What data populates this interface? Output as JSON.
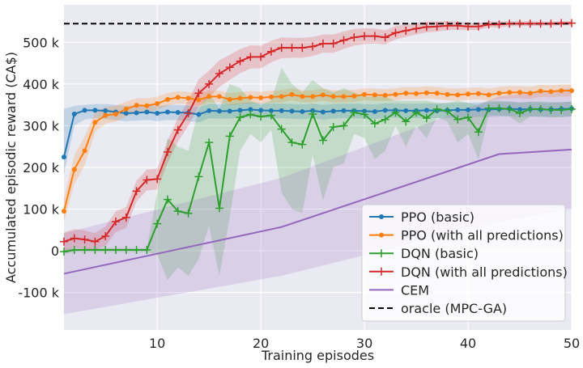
{
  "chart_data": {
    "type": "line",
    "title": "",
    "xlabel": "Training episodes",
    "ylabel": "Accumulated episodic reward (CA$)",
    "xlim": [
      1,
      50
    ],
    "ylim": [
      -190000,
      590000
    ],
    "xticks": [
      10,
      20,
      30,
      40,
      50
    ],
    "xtick_labels": [
      "10",
      "20",
      "30",
      "40",
      "50"
    ],
    "yticks": [
      -100000,
      0,
      100000,
      200000,
      300000,
      400000,
      500000
    ],
    "ytick_labels": [
      "-100 k",
      "0",
      "100 k",
      "200 k",
      "300 k",
      "400 k",
      "500 k"
    ],
    "grid": true,
    "legend_position": "lower-right",
    "series": [
      {
        "name": "PPO (basic)",
        "color": "#1f77b4",
        "marker": "dot",
        "x": [
          1,
          2,
          3,
          4,
          5,
          6,
          7,
          8,
          9,
          10,
          11,
          12,
          13,
          14,
          15,
          16,
          17,
          18,
          19,
          20,
          21,
          22,
          23,
          24,
          25,
          26,
          27,
          28,
          29,
          30,
          31,
          32,
          33,
          34,
          35,
          36,
          37,
          38,
          39,
          40,
          41,
          42,
          43,
          44,
          45,
          46,
          47,
          48,
          49,
          50
        ],
        "y": [
          225000,
          328000,
          337000,
          337000,
          336000,
          333000,
          330000,
          331000,
          333000,
          330000,
          333000,
          332000,
          331000,
          327000,
          336000,
          335000,
          335000,
          337000,
          339000,
          337000,
          336000,
          336000,
          335000,
          334000,
          336000,
          333000,
          335000,
          336000,
          336000,
          335000,
          334000,
          337000,
          337000,
          336000,
          336000,
          337000,
          336000,
          337000,
          338000,
          338000,
          339000,
          339000,
          340000,
          341000,
          339000,
          340000,
          339000,
          339000,
          340000,
          341000
        ],
        "lower": [
          185000,
          300000,
          315000,
          318000,
          316000,
          313000,
          311000,
          312000,
          314000,
          311000,
          314000,
          313000,
          312000,
          308000,
          318000,
          317000,
          317000,
          319000,
          321000,
          319000,
          318000,
          318000,
          317000,
          316000,
          318000,
          315000,
          317000,
          318000,
          318000,
          317000,
          316000,
          319000,
          319000,
          318000,
          318000,
          319000,
          318000,
          319000,
          320000,
          320000,
          321000,
          321000,
          322000,
          323000,
          321000,
          322000,
          321000,
          321000,
          322000,
          323000
        ],
        "upper": [
          340000,
          348000,
          350000,
          352000,
          352000,
          350000,
          348000,
          348000,
          350000,
          347000,
          350000,
          350000,
          349000,
          345000,
          352000,
          352000,
          352000,
          354000,
          356000,
          354000,
          353000,
          353000,
          352000,
          351000,
          353000,
          350000,
          352000,
          353000,
          353000,
          352000,
          351000,
          354000,
          354000,
          353000,
          353000,
          354000,
          353000,
          354000,
          355000,
          355000,
          356000,
          356000,
          357000,
          358000,
          356000,
          357000,
          356000,
          356000,
          357000,
          358000
        ]
      },
      {
        "name": "PPO (with all predictions)",
        "color": "#ff7f0e",
        "marker": "dot",
        "x": [
          1,
          2,
          3,
          4,
          5,
          6,
          7,
          8,
          9,
          10,
          11,
          12,
          13,
          14,
          15,
          16,
          17,
          18,
          19,
          20,
          21,
          22,
          23,
          24,
          25,
          26,
          27,
          28,
          29,
          30,
          31,
          32,
          33,
          34,
          35,
          36,
          37,
          38,
          39,
          40,
          41,
          42,
          43,
          44,
          45,
          46,
          47,
          48,
          49,
          50
        ],
        "y": [
          95000,
          195000,
          240000,
          308000,
          325000,
          328000,
          340000,
          349000,
          348000,
          353000,
          363000,
          368000,
          366000,
          362000,
          370000,
          370000,
          363000,
          366000,
          368000,
          367000,
          369000,
          370000,
          375000,
          370000,
          370000,
          374000,
          370000,
          370000,
          371000,
          375000,
          374000,
          373000,
          375000,
          378000,
          377000,
          379000,
          378000,
          375000,
          374000,
          376000,
          377000,
          374000,
          378000,
          380000,
          380000,
          378000,
          383000,
          382000,
          384000,
          384000
        ],
        "lower": [
          70000,
          160000,
          205000,
          285000,
          305000,
          310000,
          322000,
          332000,
          332000,
          338000,
          348000,
          353000,
          351000,
          347000,
          356000,
          356000,
          349000,
          352000,
          354000,
          353000,
          355000,
          356000,
          361000,
          356000,
          356000,
          360000,
          356000,
          356000,
          357000,
          361000,
          360000,
          359000,
          361000,
          364000,
          363000,
          365000,
          364000,
          361000,
          360000,
          362000,
          363000,
          360000,
          364000,
          366000,
          366000,
          364000,
          369000,
          368000,
          370000,
          370000
        ],
        "upper": [
          125000,
          230000,
          275000,
          330000,
          345000,
          348000,
          358000,
          366000,
          366000,
          370000,
          378000,
          383000,
          381000,
          377000,
          384000,
          384000,
          378000,
          381000,
          383000,
          382000,
          384000,
          385000,
          390000,
          385000,
          385000,
          389000,
          385000,
          385000,
          386000,
          390000,
          389000,
          388000,
          390000,
          393000,
          392000,
          394000,
          393000,
          390000,
          389000,
          391000,
          392000,
          389000,
          393000,
          395000,
          395000,
          393000,
          398000,
          397000,
          399000,
          399000
        ]
      },
      {
        "name": "DQN (basic)",
        "color": "#2ca02c",
        "marker": "plus",
        "x": [
          1,
          2,
          3,
          4,
          5,
          6,
          7,
          8,
          9,
          10,
          11,
          12,
          13,
          14,
          15,
          16,
          17,
          18,
          19,
          20,
          21,
          22,
          23,
          24,
          25,
          26,
          27,
          28,
          29,
          30,
          31,
          32,
          33,
          34,
          35,
          36,
          37,
          38,
          39,
          40,
          41,
          42,
          43,
          44,
          45,
          46,
          47,
          48,
          49,
          50
        ],
        "y": [
          -2000,
          2000,
          2000,
          2000,
          2000,
          2000,
          2000,
          2000,
          2000,
          65000,
          123000,
          95000,
          90000,
          178000,
          260000,
          102000,
          275000,
          320000,
          327000,
          322000,
          325000,
          292000,
          260000,
          255000,
          328000,
          265000,
          297000,
          300000,
          332000,
          327000,
          305000,
          315000,
          332000,
          310000,
          332000,
          318000,
          340000,
          335000,
          315000,
          320000,
          285000,
          342000,
          342000,
          340000,
          330000,
          340000,
          340000,
          338000,
          338000,
          340000
        ],
        "lower": [
          -8000,
          -3000,
          -3000,
          -3000,
          -3000,
          -3000,
          -3000,
          -3000,
          -3000,
          -10000,
          -70000,
          -40000,
          -60000,
          -20000,
          60000,
          -60000,
          80000,
          240000,
          280000,
          260000,
          290000,
          140000,
          100000,
          90000,
          230000,
          120000,
          200000,
          210000,
          280000,
          270000,
          220000,
          240000,
          300000,
          250000,
          300000,
          270000,
          320000,
          310000,
          260000,
          280000,
          220000,
          325000,
          325000,
          322000,
          305000,
          322000,
          322000,
          320000,
          320000,
          322000
        ],
        "upper": [
          4000,
          7000,
          7000,
          7000,
          7000,
          7000,
          7000,
          7000,
          7000,
          140000,
          270000,
          250000,
          240000,
          340000,
          380000,
          340000,
          400000,
          390000,
          360000,
          350000,
          360000,
          440000,
          400000,
          380000,
          410000,
          390000,
          380000,
          390000,
          380000,
          370000,
          370000,
          370000,
          360000,
          360000,
          360000,
          360000,
          355000,
          355000,
          360000,
          355000,
          350000,
          360000,
          360000,
          358000,
          355000,
          358000,
          358000,
          356000,
          356000,
          358000
        ]
      },
      {
        "name": "DQN (with all predictions)",
        "color": "#d62728",
        "marker": "plus",
        "x": [
          1,
          2,
          3,
          4,
          5,
          6,
          7,
          8,
          9,
          10,
          11,
          12,
          13,
          14,
          15,
          16,
          17,
          18,
          19,
          20,
          21,
          22,
          23,
          24,
          25,
          26,
          27,
          28,
          29,
          30,
          31,
          32,
          33,
          34,
          35,
          36,
          37,
          38,
          39,
          40,
          41,
          42,
          43,
          44,
          45,
          46,
          47,
          48,
          49,
          50
        ],
        "y": [
          22000,
          30000,
          27000,
          22000,
          35000,
          70000,
          80000,
          143000,
          170000,
          172000,
          237000,
          290000,
          330000,
          378000,
          400000,
          425000,
          440000,
          455000,
          465000,
          465000,
          478000,
          487000,
          487000,
          487000,
          490000,
          497000,
          497000,
          505000,
          512000,
          515000,
          515000,
          512000,
          523000,
          528000,
          533000,
          537000,
          538000,
          540000,
          540000,
          538000,
          538000,
          543000,
          543000,
          545000,
          545000,
          545000,
          545000,
          545000,
          546000,
          546000
        ],
        "lower": [
          0,
          8000,
          5000,
          2000,
          12000,
          45000,
          55000,
          118000,
          145000,
          147000,
          210000,
          262000,
          300000,
          345000,
          368000,
          393000,
          410000,
          426000,
          437000,
          438000,
          452000,
          462000,
          463000,
          463000,
          467000,
          475000,
          475000,
          484000,
          492000,
          496000,
          497000,
          495000,
          507000,
          513000,
          519000,
          524000,
          526000,
          529000,
          530000,
          529000,
          530000,
          536000,
          536000,
          539000,
          539000,
          539000,
          540000,
          540000,
          541000,
          541000
        ],
        "upper": [
          44000,
          52000,
          49000,
          42000,
          58000,
          95000,
          105000,
          168000,
          195000,
          197000,
          264000,
          318000,
          360000,
          411000,
          432000,
          457000,
          470000,
          484000,
          493000,
          492000,
          504000,
          512000,
          511000,
          511000,
          513000,
          519000,
          519000,
          526000,
          532000,
          534000,
          533000,
          529000,
          539000,
          543000,
          547000,
          550000,
          550000,
          551000,
          550000,
          547000,
          546000,
          550000,
          550000,
          551000,
          551000,
          551000,
          550000,
          550000,
          551000,
          551000
        ]
      },
      {
        "name": "CEM",
        "color": "#9467bd",
        "marker": "none",
        "x": [
          1,
          22,
          43,
          50
        ],
        "y": [
          -55000,
          57000,
          232000,
          243000
        ],
        "lower": [
          -152000,
          -60000,
          70000,
          100000
        ],
        "upper": [
          42000,
          175000,
          370000,
          390000
        ]
      },
      {
        "name": "oracle (MPC-GA)",
        "color": "#000000",
        "marker": "none",
        "dashed": true,
        "x": [
          1,
          50
        ],
        "y": [
          545000,
          545000
        ]
      }
    ]
  }
}
